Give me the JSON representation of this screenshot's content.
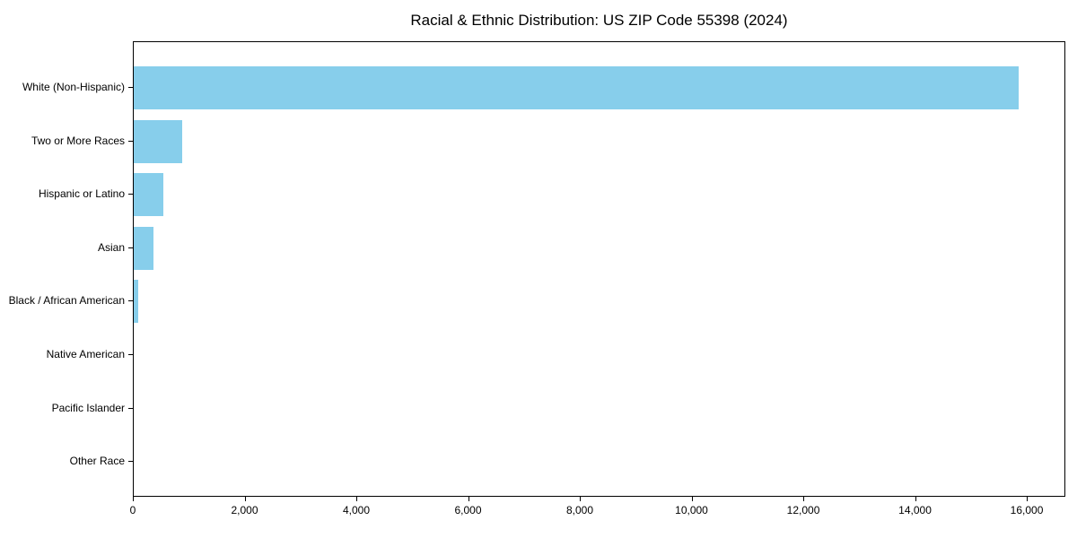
{
  "title": "Racial & Ethnic Distribution: US ZIP Code 55398 (2024)",
  "colors": {
    "bar": "#87CEEB",
    "axis": "#000000",
    "background": "#ffffff",
    "text": "#000000"
  },
  "chart_data": {
    "type": "bar",
    "orientation": "horizontal",
    "title": "Racial & Ethnic Distribution: US ZIP Code 55398 (2024)",
    "xlabel": "",
    "ylabel": "",
    "categories": [
      "White (Non-Hispanic)",
      "Two or More Races",
      "Hispanic or Latino",
      "Asian",
      "Black / African American",
      "Native American",
      "Pacific Islander",
      "Other Race"
    ],
    "values": [
      15870,
      870,
      535,
      355,
      80,
      0,
      0,
      0
    ],
    "xlim": [
      0,
      16690
    ],
    "x_ticks": [
      0,
      2000,
      4000,
      6000,
      8000,
      10000,
      12000,
      14000,
      16000
    ],
    "x_tick_labels": [
      "0",
      "2,000",
      "4,000",
      "6,000",
      "8,000",
      "10,000",
      "12,000",
      "14,000",
      "16,000"
    ],
    "grid": false,
    "legend": null,
    "bar_color": "#87CEEB"
  }
}
